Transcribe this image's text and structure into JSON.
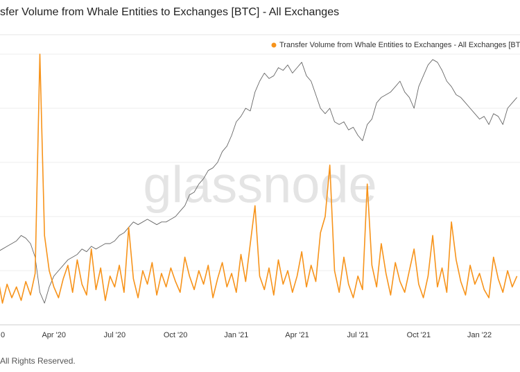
{
  "chart_data": {
    "type": "line",
    "title": "sfer Volume from Whale Entities to Exchanges [BTC] - All Exchanges",
    "watermark": "glassnode",
    "footer": "All Rights Reserved.",
    "categories": [
      "0",
      null,
      null,
      null,
      null,
      null,
      null,
      null,
      null,
      null,
      null,
      null,
      null,
      "Apr '20",
      null,
      null,
      null,
      null,
      null,
      null,
      null,
      null,
      null,
      null,
      null,
      null,
      "Jul '20",
      null,
      null,
      null,
      null,
      null,
      null,
      null,
      null,
      null,
      null,
      null,
      null,
      "Oct '20",
      null,
      null,
      null,
      null,
      null,
      null,
      null,
      null,
      null,
      null,
      null,
      null,
      "Jan '21",
      null,
      null,
      null,
      null,
      null,
      null,
      null,
      null,
      null,
      null,
      null,
      null,
      "Apr '21",
      null,
      null,
      null,
      null,
      null,
      null,
      null,
      null,
      null,
      null,
      null,
      null,
      "Jul '21",
      null,
      null,
      null,
      null,
      null,
      null,
      null,
      null,
      null,
      null,
      null,
      null,
      "Oct '21",
      null,
      null,
      null,
      null,
      null,
      null,
      null,
      null,
      null,
      null,
      null,
      null,
      "Jan '22",
      null,
      null,
      null,
      null,
      null,
      null,
      null,
      null
    ],
    "series": [
      {
        "color": "#666666",
        "values": [
          26,
          27,
          28,
          29,
          30,
          31,
          33,
          32,
          30,
          25,
          12,
          8,
          14,
          18,
          20,
          22,
          24,
          25,
          26,
          28,
          27,
          29,
          28,
          29,
          30,
          30,
          31,
          33,
          34,
          36,
          38,
          37,
          38,
          39,
          38,
          37,
          38,
          38,
          39,
          40,
          42,
          44,
          48,
          49,
          52,
          54,
          57,
          58,
          60,
          64,
          66,
          70,
          75,
          77,
          80,
          79,
          86,
          90,
          93,
          91,
          92,
          95,
          94,
          96,
          93,
          95,
          97,
          92,
          90,
          85,
          80,
          78,
          80,
          75,
          74,
          75,
          72,
          73,
          70,
          68,
          74,
          76,
          82,
          84,
          85,
          86,
          88,
          90,
          86,
          84,
          80,
          88,
          92,
          96,
          98,
          97,
          94,
          90,
          88,
          85,
          84,
          82,
          80,
          78,
          76,
          77,
          74,
          78,
          77,
          74,
          80,
          82,
          84
        ]
      },
      {
        "name": "Transfer Volume from Whale Entities to Exchanges - All Exchanges [BTC",
        "color": "#f7931a",
        "values": [
          12,
          18,
          8,
          15,
          10,
          14,
          9,
          16,
          11,
          19,
          100,
          33,
          20,
          14,
          10,
          17,
          22,
          12,
          24,
          15,
          11,
          28,
          13,
          21,
          9,
          18,
          14,
          22,
          12,
          36,
          17,
          10,
          20,
          15,
          23,
          11,
          19,
          14,
          21,
          16,
          12,
          25,
          18,
          13,
          20,
          15,
          22,
          10,
          17,
          23,
          14,
          19,
          12,
          26,
          16,
          30,
          44,
          18,
          13,
          21,
          11,
          24,
          15,
          20,
          12,
          18,
          27,
          14,
          22,
          16,
          34,
          40,
          59,
          20,
          12,
          25,
          15,
          10,
          18,
          13,
          52,
          22,
          14,
          30,
          19,
          11,
          23,
          16,
          12,
          20,
          28,
          15,
          10,
          18,
          33,
          14,
          21,
          12,
          38,
          24,
          16,
          11,
          22,
          15,
          19,
          13,
          10,
          25,
          17,
          12,
          20,
          14,
          18
        ]
      }
    ],
    "ylim": [
      0,
      120
    ],
    "yticks": [
      20,
      40,
      60,
      80,
      100
    ],
    "grid": true,
    "legend": "top-right"
  }
}
